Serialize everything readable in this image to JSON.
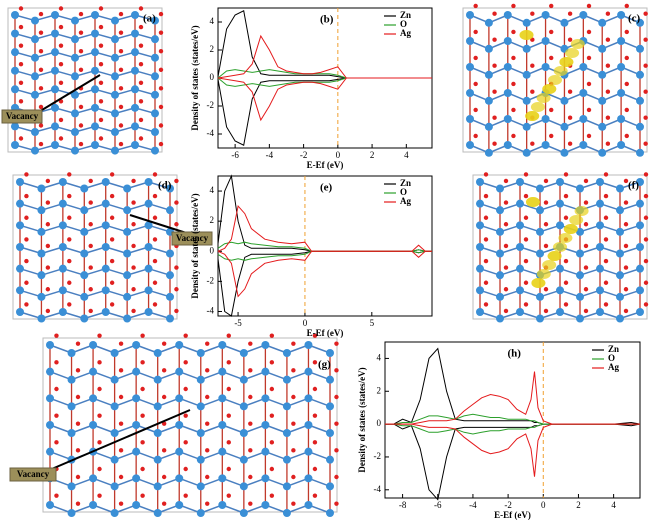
{
  "chart_data": [
    {
      "type": "line",
      "panel_label": "(b)",
      "xlabel": "E-Ef (eV)",
      "ylabel": "Density of states (states/eV)",
      "x": [
        -7,
        -6.5,
        -6,
        -5.5,
        -5,
        -4.5,
        -4,
        -3.5,
        -3,
        -2.5,
        -2,
        -1.5,
        -1,
        -0.5,
        0,
        0.5,
        1,
        2,
        3,
        4,
        5,
        5.5
      ],
      "series": [
        {
          "name": "Zn",
          "color": "#000000",
          "values": [
            0.1,
            3.5,
            4.5,
            4.8,
            1.5,
            0.3,
            0.2,
            0.2,
            0.2,
            0.2,
            0.2,
            0.2,
            0.2,
            0.2,
            0.1,
            0,
            0,
            0,
            0,
            0,
            0,
            0
          ],
          "values_down": [
            -0.1,
            -3.5,
            -4.5,
            -4.8,
            -1.5,
            -0.3,
            -0.2,
            -0.2,
            -0.2,
            -0.2,
            -0.2,
            -0.2,
            -0.2,
            -0.2,
            -0.1,
            0,
            0,
            0,
            0,
            0,
            0,
            0
          ]
        },
        {
          "name": "O",
          "color": "#2ca02c",
          "values": [
            0,
            0.5,
            0.6,
            0.5,
            0.4,
            0.5,
            0.6,
            0.5,
            0.4,
            0.3,
            0.3,
            0.3,
            0.3,
            0.3,
            0.2,
            0,
            0,
            0,
            0,
            0,
            0,
            0
          ],
          "values_down": [
            0,
            -0.5,
            -0.6,
            -0.5,
            -0.4,
            -0.5,
            -0.6,
            -0.5,
            -0.4,
            -0.3,
            -0.3,
            -0.3,
            -0.3,
            -0.3,
            -0.2,
            0,
            0,
            0,
            0,
            0,
            0,
            0
          ]
        },
        {
          "name": "Ag",
          "color": "#e41a1c",
          "values": [
            0,
            0.1,
            0.2,
            0.3,
            1,
            3,
            2,
            0.8,
            0.5,
            0.4,
            0.3,
            0.3,
            0.4,
            0.6,
            0.8,
            0,
            0,
            0,
            0,
            0,
            0,
            0
          ],
          "values_down": [
            0,
            -0.1,
            -0.2,
            -0.3,
            -1,
            -3,
            -2,
            -0.8,
            -0.5,
            -0.4,
            -0.3,
            -0.3,
            -0.4,
            -0.6,
            -0.8,
            0,
            0,
            0,
            0,
            0,
            0,
            0
          ]
        }
      ],
      "xlim": [
        -7,
        5.5
      ],
      "xticks": [
        -6,
        -4,
        -2,
        0,
        2,
        4
      ],
      "ylim": [
        -5,
        5
      ],
      "yticks": [
        -4,
        -2,
        0,
        2,
        4
      ],
      "vline": 0,
      "legend": "upper right"
    },
    {
      "type": "line",
      "panel_label": "(e)",
      "xlabel": "E-Ef (eV)",
      "ylabel": "Density of states (states/eV)",
      "x": [
        -6.5,
        -6,
        -5.5,
        -5,
        -4.5,
        -4,
        -3,
        -2,
        -1,
        0,
        0.5,
        1,
        3,
        5,
        7,
        8,
        8.5,
        9,
        9.5
      ],
      "series": [
        {
          "name": "Zn",
          "color": "#000000",
          "values": [
            0.5,
            4,
            5,
            2,
            0.4,
            0.2,
            0.2,
            0.2,
            0.2,
            0.1,
            0,
            0,
            0,
            0,
            0,
            0,
            0.1,
            0,
            0
          ],
          "values_down": [
            -0.5,
            -4,
            -4.3,
            -2,
            -0.4,
            -0.2,
            -0.2,
            -0.2,
            -0.2,
            -0.1,
            0,
            0,
            0,
            0,
            0,
            0,
            -0.1,
            0,
            0
          ]
        },
        {
          "name": "O",
          "color": "#2ca02c",
          "values": [
            0.2,
            0.5,
            0.6,
            0.5,
            0.6,
            0.5,
            0.4,
            0.3,
            0.3,
            0.2,
            0,
            0,
            0,
            0,
            0,
            0,
            0.1,
            0,
            0
          ],
          "values_down": [
            -0.2,
            -0.5,
            -0.6,
            -0.5,
            -0.6,
            -0.5,
            -0.4,
            -0.3,
            -0.3,
            -0.2,
            0,
            0,
            0,
            0,
            0,
            0,
            -0.1,
            0,
            0
          ]
        },
        {
          "name": "Ag",
          "color": "#e41a1c",
          "values": [
            0,
            0.2,
            0.8,
            3,
            2.5,
            1.5,
            0.8,
            0.6,
            0.5,
            0.6,
            0,
            0,
            0,
            0,
            0,
            0,
            0.4,
            0,
            0
          ],
          "values_down": [
            0,
            -0.2,
            -0.8,
            -3,
            -2.5,
            -1.5,
            -0.8,
            -0.6,
            -0.5,
            -0.6,
            0,
            0,
            0,
            0,
            0,
            0,
            -0.4,
            0,
            0
          ]
        }
      ],
      "xlim": [
        -6.5,
        9.5
      ],
      "xticks": [
        -5,
        0,
        5
      ],
      "ylim": [
        -4.3,
        5
      ],
      "yticks": [
        -4,
        -2,
        0,
        2,
        4
      ],
      "vline": 0,
      "legend": "upper right"
    },
    {
      "type": "line",
      "panel_label": "(h)",
      "xlabel": "E-Ef (eV)",
      "ylabel": "Density of states (states/eV)",
      "x": [
        -9,
        -8.5,
        -8,
        -7.5,
        -7,
        -6.5,
        -6,
        -5.5,
        -5,
        -4.5,
        -4,
        -3.5,
        -3,
        -2.5,
        -2,
        -1.5,
        -1,
        -0.7,
        -0.5,
        -0.3,
        0,
        0.5,
        1,
        2,
        3,
        4,
        5,
        5.5
      ],
      "series": [
        {
          "name": "Zn",
          "color": "#000000",
          "values": [
            0,
            0,
            0.3,
            0.1,
            1.5,
            4,
            4.6,
            2,
            0.3,
            0.2,
            0.2,
            0.2,
            0.2,
            0.2,
            0.2,
            0.2,
            0.2,
            0.2,
            0.1,
            0.1,
            0,
            0,
            0,
            0,
            0,
            0,
            0.1,
            0
          ],
          "values_down": [
            0,
            0,
            -0.3,
            -0.1,
            -1.5,
            -4,
            -4.6,
            -2,
            -0.3,
            -0.2,
            -0.2,
            -0.2,
            -0.2,
            -0.2,
            -0.2,
            -0.2,
            -0.2,
            -0.2,
            -0.1,
            -0.1,
            0,
            0,
            0,
            0,
            0,
            0,
            -0.1,
            0
          ]
        },
        {
          "name": "O",
          "color": "#2ca02c",
          "values": [
            0,
            0,
            0.1,
            0.1,
            0.3,
            0.5,
            0.5,
            0.4,
            0.3,
            0.5,
            0.6,
            0.5,
            0.4,
            0.4,
            0.3,
            0.3,
            0.3,
            0.2,
            0.2,
            0.1,
            0,
            0,
            0,
            0,
            0,
            0,
            0,
            0
          ],
          "values_down": [
            0,
            0,
            -0.1,
            -0.1,
            -0.3,
            -0.5,
            -0.5,
            -0.4,
            -0.3,
            -0.5,
            -0.6,
            -0.5,
            -0.4,
            -0.4,
            -0.3,
            -0.3,
            -0.3,
            -0.2,
            -0.2,
            -0.1,
            0,
            0,
            0,
            0,
            0,
            0,
            0,
            0
          ]
        },
        {
          "name": "Ag",
          "color": "#e41a1c",
          "values": [
            0,
            0,
            0,
            0,
            0.1,
            0.2,
            0.2,
            0.2,
            0.3,
            0.8,
            1.2,
            1.6,
            1.8,
            1.7,
            1.5,
            0.9,
            0.6,
            1.5,
            3.2,
            1,
            0.2,
            0,
            0,
            0,
            0,
            0,
            0,
            0
          ],
          "values_down": [
            0,
            0,
            0,
            0,
            -0.1,
            -0.2,
            -0.2,
            -0.2,
            -0.3,
            -0.8,
            -1.2,
            -1.6,
            -1.8,
            -1.7,
            -1.5,
            -0.9,
            -0.6,
            -1.5,
            -3.2,
            -1,
            -0.2,
            0,
            0,
            0,
            0,
            0,
            0,
            0
          ]
        }
      ],
      "xlim": [
        -9,
        5.5
      ],
      "xticks": [
        -8,
        -6,
        -4,
        -2,
        0,
        2,
        4
      ],
      "ylim": [
        -4.5,
        5
      ],
      "yticks": [
        -4,
        -2,
        0,
        2,
        4
      ],
      "vline": 0,
      "legend": "upper right"
    }
  ],
  "structures": [
    {
      "panel_label": "(a)",
      "annotation": "Vacancy"
    },
    {
      "panel_label": "(c)"
    },
    {
      "panel_label": "(d)",
      "annotation": "Vacancy"
    },
    {
      "panel_label": "(f)"
    },
    {
      "panel_label": "(g)",
      "annotation": "Vacancy"
    }
  ]
}
